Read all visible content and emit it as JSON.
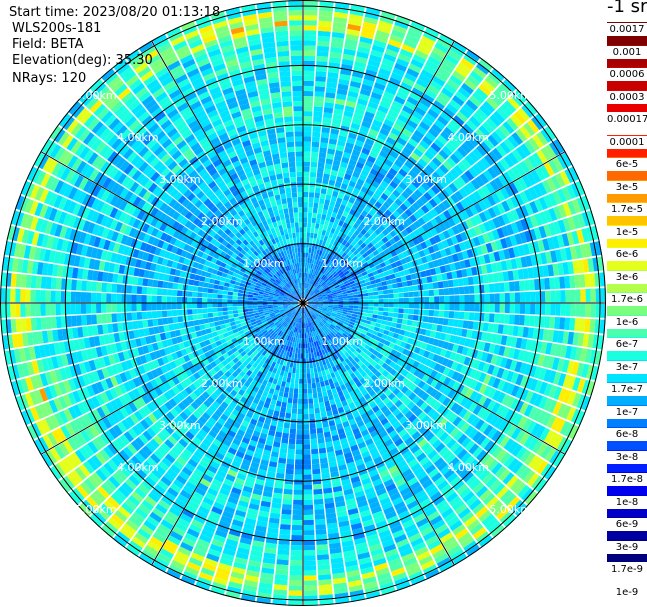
{
  "header": {
    "start_time": "Start time: 2023/08/20 01:13:18",
    "instrument": "WLS200s-181",
    "field": "Field: BETA",
    "elevation": "Elevation(deg): 35.30",
    "nrays": "NRays: 120"
  },
  "colorbar": {
    "unit": "-1 sr",
    "labels": [
      "0.0017",
      "0.001",
      "0.0006",
      "0.0003",
      "0.00017",
      "0.0001",
      "6e-5",
      "3e-5",
      "1.7e-5",
      "1e-5",
      "6e-6",
      "3e-6",
      "1.7e-6",
      "1e-6",
      "6e-7",
      "3e-7",
      "1.7e-7",
      "1e-7",
      "6e-8",
      "3e-8",
      "1.7e-8",
      "1e-8",
      "6e-9",
      "3e-9",
      "1.7e-9",
      "1e-9"
    ],
    "colors": [
      "#7f0000",
      "#a80000",
      "#c80000",
      "#e80000",
      "#ffffff",
      "#ff2000",
      "#ff6a00",
      "#ff9a00",
      "#ffc400",
      "#ffee00",
      "#e4ff1a",
      "#b4ff4a",
      "#7cff7c",
      "#4affad",
      "#1affe0",
      "#00e4ff",
      "#00b0ff",
      "#0080ff",
      "#0050ff",
      "#0020ff",
      "#0000f0",
      "#0000c8",
      "#0000a0",
      "#00007f"
    ]
  },
  "chart_data": {
    "type": "heatmap",
    "projection": "polar-ppi",
    "field": "BETA",
    "nrays": 120,
    "range_rings_km": [
      1,
      2,
      3,
      4,
      5
    ],
    "ring_labels": [
      "1.00km",
      "2.00km",
      "3.00km",
      "4.00km",
      "5.00km"
    ],
    "max_range_km": 5.1,
    "spoke_angles_deg": [
      0,
      30,
      60,
      90,
      120,
      150,
      180,
      210,
      240,
      270,
      300,
      330
    ],
    "value_range": [
      1e-09,
      0.0017
    ],
    "log_scale": true,
    "dominant_range": "1e-8 to 3e-7",
    "grid": true
  }
}
